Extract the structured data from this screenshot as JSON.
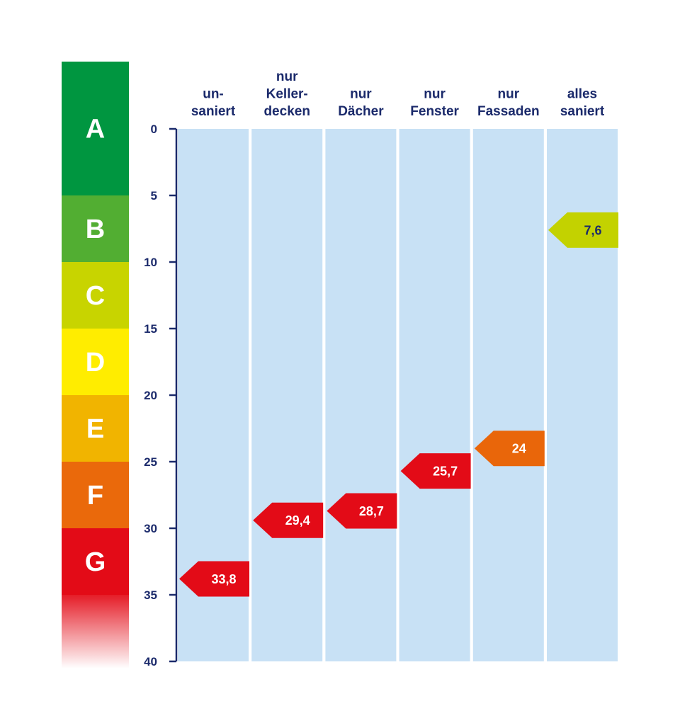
{
  "chart_data": {
    "type": "bar",
    "categories": [
      [
        "un-",
        "saniert"
      ],
      [
        "nur",
        "Keller-",
        "decken"
      ],
      [
        "nur",
        "Dächer"
      ],
      [
        "nur",
        "Fenster"
      ],
      [
        "nur",
        "Fassaden"
      ],
      [
        "alles",
        "saniert"
      ]
    ],
    "values": [
      33.8,
      29.4,
      28.7,
      25.7,
      24,
      7.6
    ],
    "value_labels": [
      "33,8",
      "29,4",
      "28,7",
      "25,7",
      "24",
      "7,6"
    ],
    "marker_colors": [
      "#e30b17",
      "#e30b17",
      "#e30b17",
      "#e30b17",
      "#e9660a",
      "#c3d200"
    ],
    "marker_text_colors": [
      "#ffffff",
      "#ffffff",
      "#ffffff",
      "#ffffff",
      "#ffffff",
      "#1b2a6b"
    ],
    "ylim": [
      0,
      40
    ],
    "y_inverted": true,
    "y_ticks": [
      "0",
      "5",
      "10",
      "15",
      "20",
      "25",
      "30",
      "35",
      "40"
    ],
    "column_color": "#c8e1f5",
    "axis_color": "#1b2a6b",
    "efficiency_classes": [
      {
        "label": "A",
        "from": 0,
        "to": 5,
        "color": "#009640"
      },
      {
        "label": "B",
        "from": 5,
        "to": 10,
        "color": "#52ae32"
      },
      {
        "label": "C",
        "from": 10,
        "to": 15,
        "color": "#c8d400"
      },
      {
        "label": "D",
        "from": 15,
        "to": 20,
        "color": "#ffed00"
      },
      {
        "label": "E",
        "from": 20,
        "to": 25,
        "color": "#f1b400"
      },
      {
        "label": "F",
        "from": 25,
        "to": 30,
        "color": "#ea690b"
      },
      {
        "label": "G",
        "from": 30,
        "to": 35,
        "color": "#e30b17"
      }
    ],
    "gradient_tail": {
      "from": 35,
      "to": 40,
      "color": "#e30b17"
    }
  }
}
